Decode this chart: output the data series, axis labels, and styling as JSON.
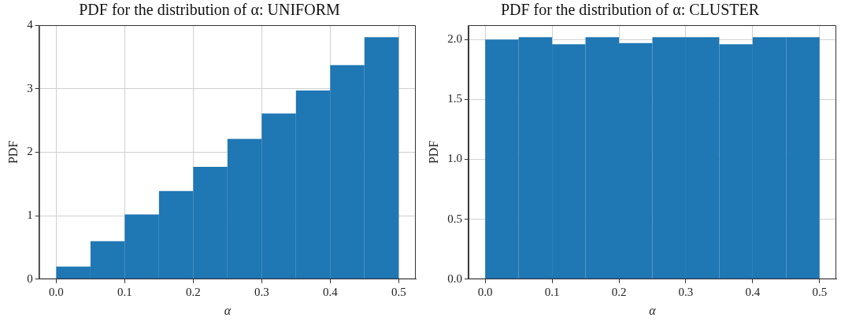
{
  "chart_data": [
    {
      "type": "histogram",
      "title": "PDF for the distribution of α: UNIFORM",
      "xlabel": "α",
      "ylabel": "PDF",
      "color": "#1f77b4",
      "bins": [
        0,
        0.05,
        0.1,
        0.15,
        0.2,
        0.25,
        0.3,
        0.35,
        0.4,
        0.45,
        0.5
      ],
      "values": [
        0.2,
        0.6,
        1.02,
        1.39,
        1.77,
        2.21,
        2.61,
        2.97,
        3.37,
        3.81
      ],
      "xlim": [
        -0.025,
        0.525
      ],
      "xticks": [
        {
          "value": 0,
          "label": "0.0"
        },
        {
          "value": 0.1,
          "label": "0.1"
        },
        {
          "value": 0.2,
          "label": "0.2"
        },
        {
          "value": 0.3,
          "label": "0.3"
        },
        {
          "value": 0.4,
          "label": "0.4"
        },
        {
          "value": 0.5,
          "label": "0.5"
        }
      ],
      "ylim": [
        0,
        4
      ],
      "yticks": [
        0,
        1,
        2,
        3,
        4
      ],
      "grid": true
    },
    {
      "type": "histogram",
      "title": "PDF for the distribution of α: CLUSTER",
      "xlabel": "α",
      "ylabel": "PDF",
      "color": "#1f77b4",
      "bins": [
        0,
        0.05,
        0.1,
        0.15,
        0.2,
        0.25,
        0.3,
        0.35,
        0.4,
        0.45,
        0.5
      ],
      "values": [
        2.0,
        2.02,
        1.96,
        2.02,
        1.97,
        2.02,
        2.02,
        1.96,
        2.02,
        2.02
      ],
      "xlim": [
        -0.025,
        0.525
      ],
      "xticks": [
        {
          "value": 0,
          "label": "0.0"
        },
        {
          "value": 0.1,
          "label": "0.1"
        },
        {
          "value": 0.2,
          "label": "0.2"
        },
        {
          "value": 0.3,
          "label": "0.3"
        },
        {
          "value": 0.4,
          "label": "0.4"
        },
        {
          "value": 0.5,
          "label": "0.5"
        }
      ],
      "ylim": [
        0,
        2.12
      ],
      "yticks": [
        {
          "value": 0,
          "label": "0.0"
        },
        {
          "value": 0.5,
          "label": "0.5"
        },
        {
          "value": 1,
          "label": "1.0"
        },
        {
          "value": 1.5,
          "label": "1.5"
        },
        {
          "value": 2,
          "label": "2.0"
        }
      ],
      "grid": true
    }
  ]
}
